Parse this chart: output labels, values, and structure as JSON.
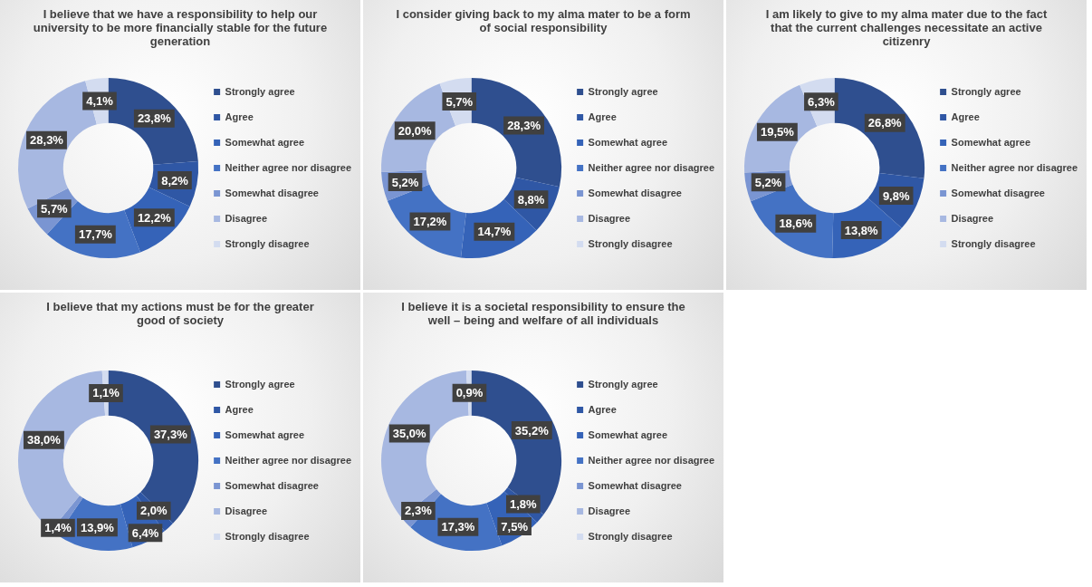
{
  "chart_data": [
    {
      "type": "donut",
      "title": "I believe that we have a responsibility to help our university to be more financially stable for the future generation",
      "categories": [
        "Strongly agree",
        "Agree",
        "Somewhat agree",
        "Neither agree nor disagree",
        "Somewhat disagree",
        "Disagree",
        "Strongly disagree"
      ],
      "values": [
        23.8,
        8.2,
        12.2,
        17.7,
        5.7,
        28.3,
        4.1
      ],
      "value_labels": [
        "23,8%",
        "8,2%",
        "12,2%",
        "17,7%",
        "5,7%",
        "28,3%",
        "4,1%"
      ],
      "colors": [
        "#2f4f8f",
        "#2f57a5",
        "#3563b8",
        "#4472c4",
        "#7a95d2",
        "#a7b8e1",
        "#d3dcf0"
      ],
      "legend": "right"
    },
    {
      "type": "donut",
      "title": "I consider giving back to my alma mater to be a form of social responsibility",
      "categories": [
        "Strongly agree",
        "Agree",
        "Somewhat agree",
        "Neither agree nor disagree",
        "Somewhat disagree",
        "Disagree",
        "Strongly disagree"
      ],
      "values": [
        28.3,
        8.8,
        14.7,
        17.2,
        5.2,
        20.0,
        5.7
      ],
      "value_labels": [
        "28,3%",
        "8,8%",
        "14,7%",
        "17,2%",
        "5,2%",
        "20,0%",
        "5,7%"
      ],
      "colors": [
        "#2f4f8f",
        "#2f57a5",
        "#3563b8",
        "#4472c4",
        "#7a95d2",
        "#a7b8e1",
        "#d3dcf0"
      ],
      "legend": "right"
    },
    {
      "type": "donut",
      "title": "I am likely to give to my alma mater due to the fact that the current challenges necessitate an active citizenry",
      "categories": [
        "Strongly agree",
        "Agree",
        "Somewhat agree",
        "Neither agree nor disagree",
        "Somewhat disagree",
        "Disagree",
        "Strongly disagree"
      ],
      "values": [
        26.8,
        9.8,
        13.8,
        18.6,
        5.2,
        19.5,
        6.3
      ],
      "value_labels": [
        "26,8%",
        "9,8%",
        "13,8%",
        "18,6%",
        "5,2%",
        "19,5%",
        "6,3%"
      ],
      "colors": [
        "#2f4f8f",
        "#2f57a5",
        "#3563b8",
        "#4472c4",
        "#7a95d2",
        "#a7b8e1",
        "#d3dcf0"
      ],
      "legend": "right"
    },
    {
      "type": "donut",
      "title": "I believe that my actions must be for the greater good of society",
      "categories": [
        "Strongly agree",
        "Agree",
        "Somewhat agree",
        "Neither agree nor disagree",
        "Somewhat disagree",
        "Disagree",
        "Strongly disagree"
      ],
      "values": [
        37.3,
        2.0,
        6.4,
        13.9,
        1.4,
        38.0,
        1.1
      ],
      "value_labels": [
        "37,3%",
        "2,0%",
        "6,4%",
        "13,9%",
        "1,4%",
        "38,0%",
        "1,1%"
      ],
      "colors": [
        "#2f4f8f",
        "#2f57a5",
        "#3563b8",
        "#4472c4",
        "#7a95d2",
        "#a7b8e1",
        "#d3dcf0"
      ],
      "legend": "right"
    },
    {
      "type": "donut",
      "title": "I believe it is a societal responsibility  to ensure the well – being and welfare of all individuals",
      "categories": [
        "Strongly agree",
        "Agree",
        "Somewhat agree",
        "Neither agree nor disagree",
        "Somewhat disagree",
        "Disagree",
        "Strongly disagree"
      ],
      "values": [
        35.2,
        1.8,
        7.5,
        17.3,
        2.3,
        35.0,
        0.9
      ],
      "value_labels": [
        "35,2%",
        "1,8%",
        "7,5%",
        "17,3%",
        "2,3%",
        "35,0%",
        "0,9%"
      ],
      "colors": [
        "#2f4f8f",
        "#2f57a5",
        "#3563b8",
        "#4472c4",
        "#7a95d2",
        "#a7b8e1",
        "#d3dcf0"
      ],
      "legend": "right"
    }
  ]
}
